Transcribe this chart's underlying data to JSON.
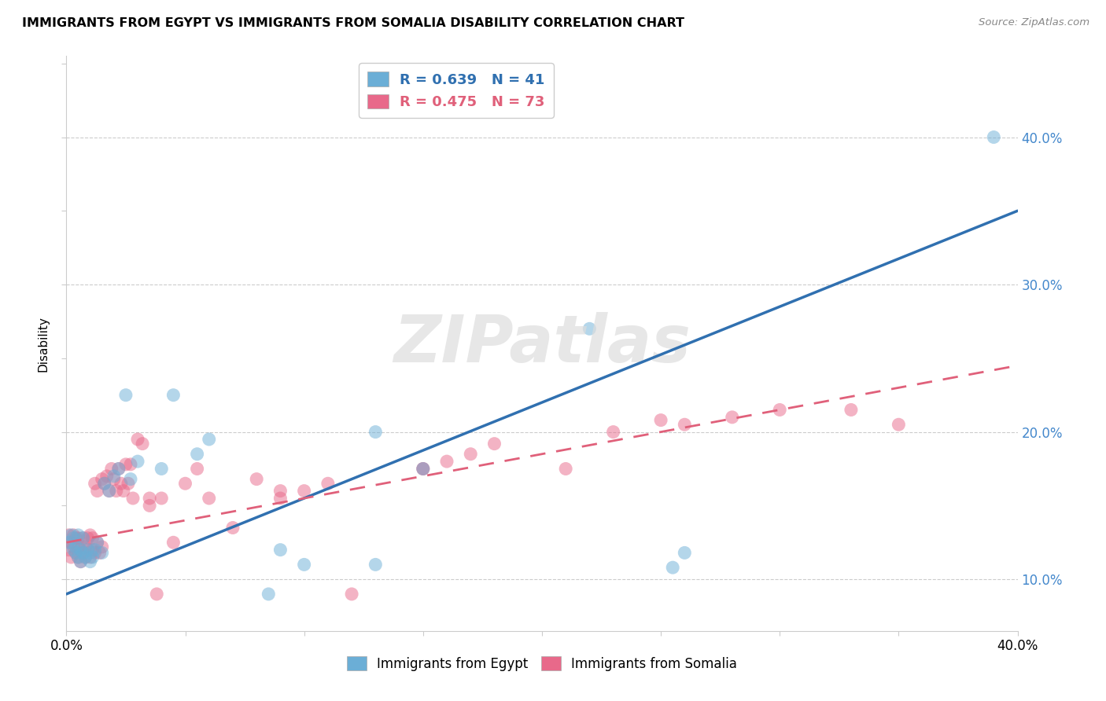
{
  "title": "IMMIGRANTS FROM EGYPT VS IMMIGRANTS FROM SOMALIA DISABILITY CORRELATION CHART",
  "source": "Source: ZipAtlas.com",
  "ylabel": "Disability",
  "egypt_color": "#6baed6",
  "somalia_color": "#e8698a",
  "egypt_line_color": "#3070b0",
  "somalia_line_color": "#e0607a",
  "egypt_R": 0.639,
  "egypt_N": 41,
  "somalia_R": 0.475,
  "somalia_N": 73,
  "watermark": "ZIPatlas",
  "xlim": [
    0.0,
    0.4
  ],
  "ylim": [
    0.065,
    0.455
  ],
  "egypt_line_x0": 0.0,
  "egypt_line_y0": 0.09,
  "egypt_line_x1": 0.4,
  "egypt_line_y1": 0.35,
  "somalia_line_x0": 0.0,
  "somalia_line_y0": 0.125,
  "somalia_line_x1": 0.4,
  "somalia_line_y1": 0.245,
  "egypt_scatter_x": [
    0.001,
    0.002,
    0.003,
    0.003,
    0.004,
    0.004,
    0.005,
    0.005,
    0.006,
    0.006,
    0.007,
    0.007,
    0.008,
    0.009,
    0.01,
    0.01,
    0.011,
    0.012,
    0.013,
    0.015,
    0.016,
    0.018,
    0.02,
    0.022,
    0.025,
    0.027,
    0.03,
    0.04,
    0.045,
    0.055,
    0.06,
    0.09,
    0.1,
    0.13,
    0.15,
    0.22,
    0.26,
    0.39,
    0.255,
    0.13,
    0.085
  ],
  "egypt_scatter_y": [
    0.125,
    0.13,
    0.12,
    0.128,
    0.122,
    0.118,
    0.115,
    0.13,
    0.12,
    0.112,
    0.128,
    0.118,
    0.115,
    0.12,
    0.118,
    0.112,
    0.115,
    0.12,
    0.125,
    0.118,
    0.165,
    0.16,
    0.17,
    0.175,
    0.225,
    0.168,
    0.18,
    0.175,
    0.225,
    0.185,
    0.195,
    0.12,
    0.11,
    0.11,
    0.175,
    0.27,
    0.118,
    0.4,
    0.108,
    0.2,
    0.09
  ],
  "somalia_scatter_x": [
    0.001,
    0.001,
    0.002,
    0.002,
    0.003,
    0.003,
    0.004,
    0.004,
    0.005,
    0.005,
    0.005,
    0.006,
    0.006,
    0.007,
    0.007,
    0.008,
    0.008,
    0.009,
    0.009,
    0.01,
    0.01,
    0.011,
    0.011,
    0.012,
    0.012,
    0.013,
    0.013,
    0.014,
    0.015,
    0.015,
    0.016,
    0.017,
    0.018,
    0.019,
    0.02,
    0.021,
    0.022,
    0.023,
    0.024,
    0.025,
    0.026,
    0.027,
    0.028,
    0.03,
    0.032,
    0.035,
    0.038,
    0.04,
    0.045,
    0.05,
    0.055,
    0.06,
    0.07,
    0.08,
    0.09,
    0.1,
    0.11,
    0.12,
    0.15,
    0.16,
    0.17,
    0.18,
    0.21,
    0.23,
    0.25,
    0.28,
    0.3,
    0.33,
    0.35,
    0.26,
    0.15,
    0.09,
    0.035
  ],
  "somalia_scatter_y": [
    0.12,
    0.13,
    0.125,
    0.115,
    0.122,
    0.13,
    0.118,
    0.128,
    0.115,
    0.122,
    0.128,
    0.112,
    0.12,
    0.118,
    0.128,
    0.115,
    0.122,
    0.12,
    0.128,
    0.115,
    0.13,
    0.12,
    0.128,
    0.165,
    0.118,
    0.125,
    0.16,
    0.118,
    0.122,
    0.168,
    0.165,
    0.17,
    0.16,
    0.175,
    0.168,
    0.16,
    0.175,
    0.165,
    0.16,
    0.178,
    0.165,
    0.178,
    0.155,
    0.195,
    0.192,
    0.155,
    0.09,
    0.155,
    0.125,
    0.165,
    0.175,
    0.155,
    0.135,
    0.168,
    0.155,
    0.16,
    0.165,
    0.09,
    0.175,
    0.18,
    0.185,
    0.192,
    0.175,
    0.2,
    0.208,
    0.21,
    0.215,
    0.215,
    0.205,
    0.205,
    0.175,
    0.16,
    0.15
  ]
}
